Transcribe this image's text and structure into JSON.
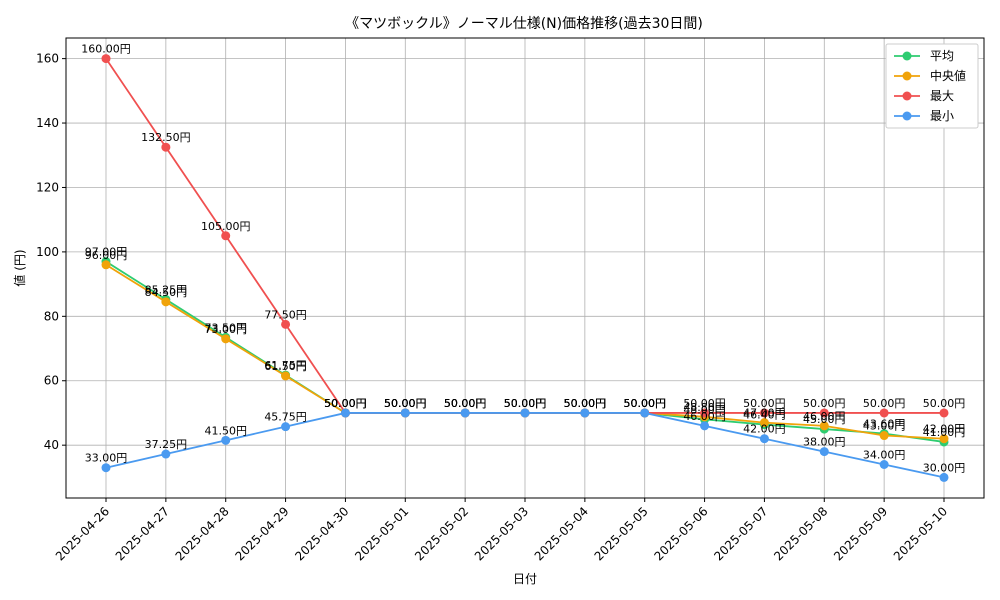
{
  "chart_data": {
    "type": "line",
    "title": "《マツボックル》ノーマル仕様(N)価格推移(過去30日間)",
    "xlabel": "日付",
    "ylabel": "値 (円)",
    "x": [
      "2025-04-26",
      "2025-04-27",
      "2025-04-28",
      "2025-04-29",
      "2025-04-30",
      "2025-05-01",
      "2025-05-02",
      "2025-05-03",
      "2025-05-04",
      "2025-05-05",
      "2025-05-06",
      "2025-05-07",
      "2025-05-08",
      "2025-05-09",
      "2025-05-10"
    ],
    "ylim": [
      23.6,
      166.4
    ],
    "yticks": [
      40,
      60,
      80,
      100,
      120,
      140,
      160
    ],
    "grid": true,
    "legend_position": "top-right",
    "label_suffix": "円",
    "series": [
      {
        "name": "平均",
        "color": "#2ecc71",
        "values": [
          97.0,
          85.25,
          73.5,
          61.75,
          50.0,
          50.0,
          50.0,
          50.0,
          50.0,
          50.0,
          48.0,
          46.4,
          45.0,
          43.6,
          41.0
        ]
      },
      {
        "name": "中央値",
        "color": "#f0a30a",
        "values": [
          96.0,
          84.5,
          73.0,
          61.5,
          50.0,
          50.0,
          50.0,
          50.0,
          50.0,
          50.0,
          48.8,
          47.0,
          46.0,
          43.0,
          42.0
        ]
      },
      {
        "name": "最大",
        "color": "#f05050",
        "values": [
          160.0,
          132.5,
          105.0,
          77.5,
          50.0,
          50.0,
          50.0,
          50.0,
          50.0,
          50.0,
          50.0,
          50.0,
          50.0,
          50.0,
          50.0
        ]
      },
      {
        "name": "最小",
        "color": "#4a9af0",
        "values": [
          33.0,
          37.25,
          41.5,
          45.75,
          50.0,
          50.0,
          50.0,
          50.0,
          50.0,
          50.0,
          46.0,
          42.0,
          38.0,
          34.0,
          30.0
        ]
      }
    ]
  }
}
